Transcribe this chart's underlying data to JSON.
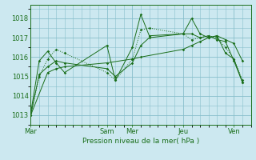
{
  "xlabel": "Pression niveau de la mer( hPa )",
  "bg_color": "#cce8f0",
  "grid_color": "#88bfcc",
  "line_color": "#1a6e1a",
  "ylim": [
    1012.5,
    1018.7
  ],
  "yticks": [
    1013,
    1014,
    1015,
    1016,
    1017,
    1018
  ],
  "xtick_labels": [
    "Mar",
    "Sam",
    "Mer",
    "Jeu",
    "Ven"
  ],
  "xtick_positions": [
    0,
    9,
    12,
    18,
    24
  ],
  "xlim": [
    0,
    26
  ],
  "series": [
    {
      "x": [
        0,
        1,
        2,
        3,
        4,
        9,
        10,
        12,
        13,
        14,
        18,
        19,
        20,
        21,
        22,
        23,
        24,
        25
      ],
      "y": [
        1013.0,
        1015.0,
        1015.9,
        1016.4,
        1016.2,
        1015.2,
        1014.8,
        1015.9,
        1017.4,
        1017.5,
        1017.2,
        1016.9,
        1017.0,
        1017.1,
        1017.0,
        1016.5,
        1015.9,
        1014.8
      ],
      "style": "dotted"
    },
    {
      "x": [
        0,
        1,
        2,
        3,
        4,
        9,
        10,
        12,
        13,
        14,
        18,
        19,
        20,
        21,
        22,
        23,
        24,
        25
      ],
      "y": [
        1013.1,
        1015.8,
        1016.3,
        1015.7,
        1015.2,
        1016.6,
        1014.8,
        1016.5,
        1018.2,
        1017.1,
        1017.2,
        1018.0,
        1017.2,
        1017.0,
        1017.1,
        1016.2,
        1015.9,
        1014.7
      ],
      "style": "solid"
    },
    {
      "x": [
        0,
        2,
        3,
        4,
        9,
        12,
        13,
        18,
        19,
        20,
        21,
        22,
        23,
        24,
        25
      ],
      "y": [
        1013.0,
        1015.2,
        1015.4,
        1015.5,
        1015.7,
        1015.9,
        1016.0,
        1016.4,
        1016.6,
        1016.8,
        1017.0,
        1017.1,
        1016.9,
        1016.7,
        1015.8
      ],
      "style": "solid"
    },
    {
      "x": [
        0,
        1,
        2,
        3,
        4,
        9,
        10,
        12,
        13,
        14,
        18,
        19,
        20,
        21,
        22,
        23,
        24,
        25
      ],
      "y": [
        1013.0,
        1015.1,
        1015.5,
        1015.8,
        1015.7,
        1015.4,
        1015.0,
        1015.7,
        1016.6,
        1017.0,
        1017.2,
        1017.2,
        1017.0,
        1017.1,
        1016.9,
        1016.8,
        1015.8,
        1014.7
      ],
      "style": "solid"
    }
  ]
}
